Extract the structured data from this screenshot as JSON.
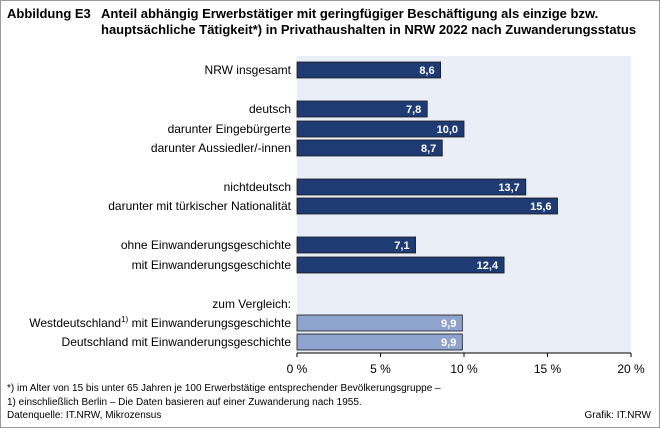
{
  "header": {
    "figure_label": "Abbildung E3",
    "title_line1": "Anteil abhängig Erwerbstätiger mit geringfügiger Beschäftigung als einzige bzw.",
    "title_line2": "hauptsächliche Tätigkeit*) in Privathaushalten in NRW 2022 nach Zuwanderungsstatus"
  },
  "chart_data": {
    "type": "bar",
    "orientation": "horizontal",
    "xlim": [
      0,
      20
    ],
    "x_ticks": [
      "0 %",
      "5 %",
      "10 %",
      "15 %",
      "20 %"
    ],
    "group_label": "zum Vergleich:",
    "categories": [
      "NRW insgesamt",
      "deutsch",
      "darunter Eingebürgerte",
      "darunter Aussiedler/-innen",
      "nichtdeutsch",
      "darunter mit türkischer Nationalität",
      "ohne Einwanderungsgeschichte",
      "mit Einwanderungsgeschichte",
      "Westdeutschland mit Einwanderungsgeschichte",
      "Deutschland mit Einwanderungsgeschichte"
    ],
    "values": [
      8.6,
      7.8,
      10.0,
      8.7,
      13.7,
      15.6,
      7.1,
      12.4,
      9.9,
      9.9
    ],
    "value_labels": [
      "8,6",
      "7,8",
      "10,0",
      "8,7",
      "13,7",
      "15,6",
      "7,1",
      "12,4",
      "9,9",
      "9,9"
    ],
    "footnote_marker": "1)",
    "footnote_category_index": 8,
    "colors": {
      "primary": "#1f3b73",
      "comparison": "#8fa3cf",
      "plot_background": "#e9eef7"
    }
  },
  "footnotes": {
    "line1": "*) im Alter von 15 bis unter 65 Jahren je 100 Erwerbstätige entsprechender Bevölkerungsgruppe –",
    "line2": "1) einschließlich Berlin – Die Daten basieren auf einer Zuwanderung nach 1955.",
    "source": "Datenquelle:  IT.NRW,  Mikrozensus",
    "credit": "Grafik: IT.NRW"
  }
}
